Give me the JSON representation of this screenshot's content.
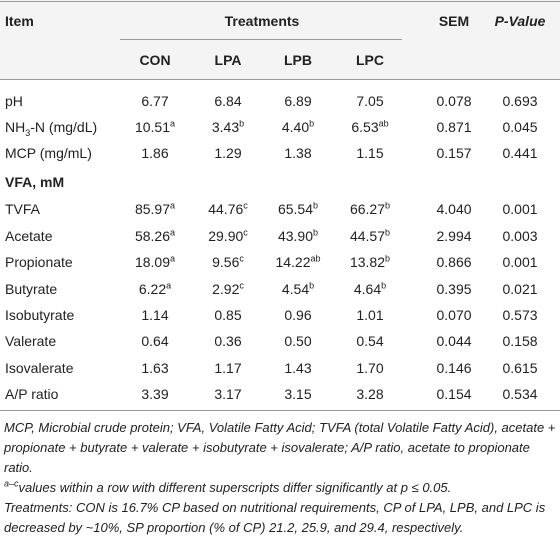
{
  "header": {
    "item": "Item",
    "treatments": "Treatments",
    "sem": "SEM",
    "pvalue": "P-Value",
    "columns": [
      "CON",
      "LPA",
      "LPB",
      "LPC"
    ]
  },
  "table": {
    "rows": [
      {
        "label": [
          {
            "t": "pH"
          }
        ],
        "cells": [
          "6.77",
          "6.84",
          "6.89",
          "7.05",
          "0.078",
          "0.693"
        ]
      },
      {
        "label": [
          {
            "t": "NH"
          },
          {
            "sub": "3"
          },
          {
            "t": "-N (mg/dL)"
          }
        ],
        "cells": [
          {
            "v": "10.51",
            "s": "a"
          },
          {
            "v": "3.43",
            "s": "b"
          },
          {
            "v": "4.40",
            "s": "b"
          },
          {
            "v": "6.53",
            "s": "ab"
          },
          "0.871",
          "0.045"
        ]
      },
      {
        "label": [
          {
            "t": "MCP (mg/mL)"
          }
        ],
        "cells": [
          "1.86",
          "1.29",
          "1.38",
          "1.15",
          "0.157",
          "0.441"
        ]
      },
      {
        "section": "VFA, mM"
      },
      {
        "label": [
          {
            "t": "TVFA"
          }
        ],
        "cells": [
          {
            "v": "85.97",
            "s": "a"
          },
          {
            "v": "44.76",
            "s": "c"
          },
          {
            "v": "65.54",
            "s": "b"
          },
          {
            "v": "66.27",
            "s": "b"
          },
          "4.040",
          "0.001"
        ]
      },
      {
        "label": [
          {
            "t": "Acetate"
          }
        ],
        "cells": [
          {
            "v": "58.26",
            "s": "a"
          },
          {
            "v": "29.90",
            "s": "c"
          },
          {
            "v": "43.90",
            "s": "b"
          },
          {
            "v": "44.57",
            "s": "b"
          },
          "2.994",
          "0.003"
        ]
      },
      {
        "label": [
          {
            "t": "Propionate"
          }
        ],
        "cells": [
          {
            "v": "18.09",
            "s": "a"
          },
          {
            "v": "9.56",
            "s": "c"
          },
          {
            "v": "14.22",
            "s": "ab"
          },
          {
            "v": "13.82",
            "s": "b"
          },
          "0.866",
          "0.001"
        ]
      },
      {
        "label": [
          {
            "t": "Butyrate"
          }
        ],
        "cells": [
          {
            "v": "6.22",
            "s": "a"
          },
          {
            "v": "2.92",
            "s": "c"
          },
          {
            "v": "4.54",
            "s": "b"
          },
          {
            "v": "4.64",
            "s": "b"
          },
          "0.395",
          "0.021"
        ]
      },
      {
        "label": [
          {
            "t": "Isobutyrate"
          }
        ],
        "cells": [
          "1.14",
          "0.85",
          "0.96",
          "1.01",
          "0.070",
          "0.573"
        ]
      },
      {
        "label": [
          {
            "t": "Valerate"
          }
        ],
        "cells": [
          "0.64",
          "0.36",
          "0.50",
          "0.54",
          "0.044",
          "0.158"
        ]
      },
      {
        "label": [
          {
            "t": "Isovalerate"
          }
        ],
        "cells": [
          "1.63",
          "1.17",
          "1.43",
          "1.70",
          "0.146",
          "0.615"
        ]
      },
      {
        "label": [
          {
            "t": "A/P ratio"
          }
        ],
        "cells": [
          "3.39",
          "3.17",
          "3.15",
          "3.28",
          "0.154",
          "0.534"
        ]
      }
    ]
  },
  "notes": [
    {
      "text": "MCP, Microbial crude protein; VFA, Volatile Fatty Acid; TVFA (total Volatile Fatty Acid), acetate + propionate + butyrate + valerate + isobutyrate + isovalerate; A/P ratio, acetate to propionate ratio."
    },
    {
      "sup": "a–c",
      "text": "values within a row with different superscripts differ significantly at p ≤ 0.05."
    },
    {
      "text": "Treatments: CON is 16.7% CP based on nutritional requirements, CP of LPA, LPB, and LPC is decreased by ~10%, SP proportion (% of CP) 21.2, 25.9, and 29.4, respectively."
    }
  ]
}
